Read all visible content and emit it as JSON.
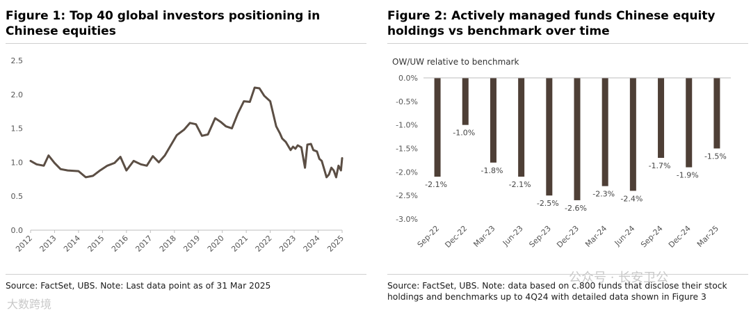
{
  "figure1": {
    "title": "Figure 1: Top 40 global investors positioning in Chinese equities",
    "source": "Source: FactSet, UBS. Note: Last data point as of 31 Mar 2025",
    "chart_data": {
      "type": "line",
      "title": "Figure 1: Top 40 global investors positioning in Chinese equities",
      "xlabel": "",
      "ylabel": "",
      "ylim": [
        0,
        2.5
      ],
      "yticks": [
        "0.0",
        "0.5",
        "1.0",
        "1.5",
        "2.0",
        "2.5"
      ],
      "xlim": [
        2012,
        2025
      ],
      "xticks": [
        "2012",
        "2013",
        "2014",
        "2015",
        "2016",
        "2017",
        "2018",
        "2019",
        "2020",
        "2021",
        "2022",
        "2023",
        "2024",
        "2025"
      ],
      "series": [
        {
          "name": "Positioning",
          "color": "#5b4e44",
          "x": [
            2012.0,
            2012.25,
            2012.55,
            2012.75,
            2013.0,
            2013.25,
            2013.55,
            2014.0,
            2014.3,
            2014.6,
            2014.9,
            2015.2,
            2015.5,
            2015.75,
            2016.0,
            2016.3,
            2016.6,
            2016.85,
            2017.1,
            2017.35,
            2017.6,
            2017.85,
            2018.1,
            2018.4,
            2018.65,
            2018.9,
            2019.15,
            2019.4,
            2019.7,
            2019.95,
            2020.15,
            2020.4,
            2020.65,
            2020.9,
            2021.15,
            2021.35,
            2021.55,
            2021.75,
            2022.0,
            2022.25,
            2022.4,
            2022.5,
            2022.65,
            2022.85,
            2022.95,
            2023.05,
            2023.15,
            2023.3,
            2023.45,
            2023.55,
            2023.7,
            2023.8,
            2023.95,
            2024.05,
            2024.15,
            2024.25,
            2024.35,
            2024.45,
            2024.55,
            2024.65,
            2024.75,
            2024.85,
            2024.95,
            2025.0
          ],
          "values": [
            1.02,
            0.97,
            0.95,
            1.1,
            0.99,
            0.9,
            0.88,
            0.87,
            0.78,
            0.8,
            0.88,
            0.95,
            0.99,
            1.08,
            0.88,
            1.02,
            0.97,
            0.95,
            1.09,
            1.0,
            1.1,
            1.25,
            1.4,
            1.48,
            1.58,
            1.56,
            1.39,
            1.41,
            1.65,
            1.59,
            1.53,
            1.5,
            1.72,
            1.9,
            1.89,
            2.1,
            2.09,
            1.98,
            1.9,
            1.53,
            1.43,
            1.35,
            1.3,
            1.18,
            1.23,
            1.2,
            1.25,
            1.22,
            0.92,
            1.26,
            1.27,
            1.18,
            1.16,
            1.05,
            1.02,
            0.9,
            0.78,
            0.82,
            0.92,
            0.88,
            0.78,
            0.95,
            0.88,
            1.06
          ]
        }
      ]
    }
  },
  "figure2": {
    "title": "Figure 2: Actively managed funds Chinese equity holdings vs benchmark over time",
    "source": "Source: FactSet, UBS. Note: data based on c.800 funds that disclose their stock holdings and benchmarks up to 4Q24 with detailed data shown in Figure 3",
    "chart_data": {
      "type": "bar",
      "title": "Figure 2: Actively managed funds Chinese equity holdings vs benchmark over time",
      "ylabel": "OW/UW relative to benchmark",
      "xlabel": "",
      "ylim": [
        -3.0,
        0.0
      ],
      "yticks": [
        "0.0%",
        "-0.5%",
        "-1.0%",
        "-1.5%",
        "-2.0%",
        "-2.5%",
        "-3.0%"
      ],
      "categories": [
        "Sep-22",
        "Dec-22",
        "Mar-23",
        "Jun-23",
        "Sep-23",
        "Dec-23",
        "Mar-24",
        "Jun-24",
        "Sep-24",
        "Dec-24",
        "Mar-25"
      ],
      "values": [
        -2.1,
        -1.0,
        -1.8,
        -2.1,
        -2.5,
        -2.6,
        -2.3,
        -2.4,
        -1.7,
        -1.9,
        -1.5
      ],
      "data_labels": [
        "-2.1%",
        "-1.0%",
        "-1.8%",
        "-2.1%",
        "-2.5%",
        "-2.6%",
        "-2.3%",
        "-2.4%",
        "-1.7%",
        "-1.9%",
        "-1.5%"
      ],
      "bar_color": "#4e3f36"
    }
  },
  "watermarks": {
    "left": "大数跨境",
    "right": "公众号 · 长安卫公"
  }
}
